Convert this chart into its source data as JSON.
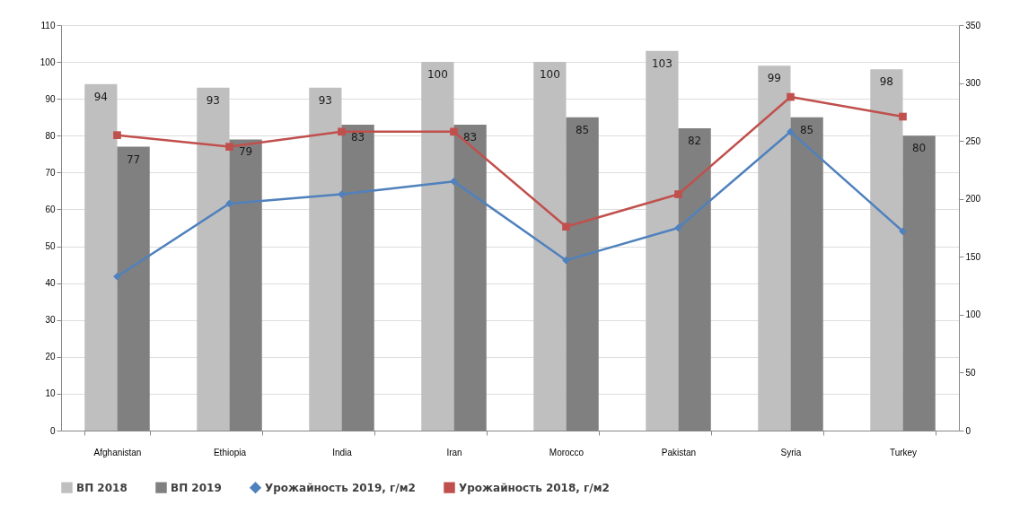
{
  "chart_data": {
    "type": "bar",
    "categories": [
      "Afghanistan",
      "Ethiopia",
      "India",
      "Iran",
      "Morocco",
      "Pakistan",
      "Syria",
      "Turkey"
    ],
    "series": [
      {
        "name": "ВП 2018",
        "color": "#bfbfbf",
        "values": [
          94,
          93,
          93,
          100,
          100,
          103,
          99,
          98
        ],
        "data_labels": true
      },
      {
        "name": "ВП 2019",
        "color": "#808080",
        "values": [
          77,
          79,
          83,
          83,
          85,
          82,
          85,
          80
        ],
        "data_labels": true
      },
      {
        "name": "Урожайность 2019, г/м2",
        "type": "line",
        "axis": "y2",
        "color": "#4f81bd",
        "marker": "diamond",
        "values": [
          133,
          196,
          204,
          215,
          147,
          175,
          258,
          172
        ]
      },
      {
        "name": "Урожайность 2018, г/м2",
        "type": "line",
        "axis": "y2",
        "color": "#c0504d",
        "marker": "square",
        "values": [
          255,
          245,
          258,
          258,
          176,
          204,
          288,
          271
        ]
      }
    ],
    "ylim": [
      0,
      110
    ],
    "yticks": [
      0,
      10,
      20,
      30,
      40,
      50,
      60,
      70,
      80,
      90,
      100,
      110
    ],
    "y2lim": [
      0,
      350
    ],
    "y2ticks": [
      0,
      50,
      100,
      150,
      200,
      250,
      300,
      350
    ],
    "grid": "y",
    "legend": "bottom"
  }
}
